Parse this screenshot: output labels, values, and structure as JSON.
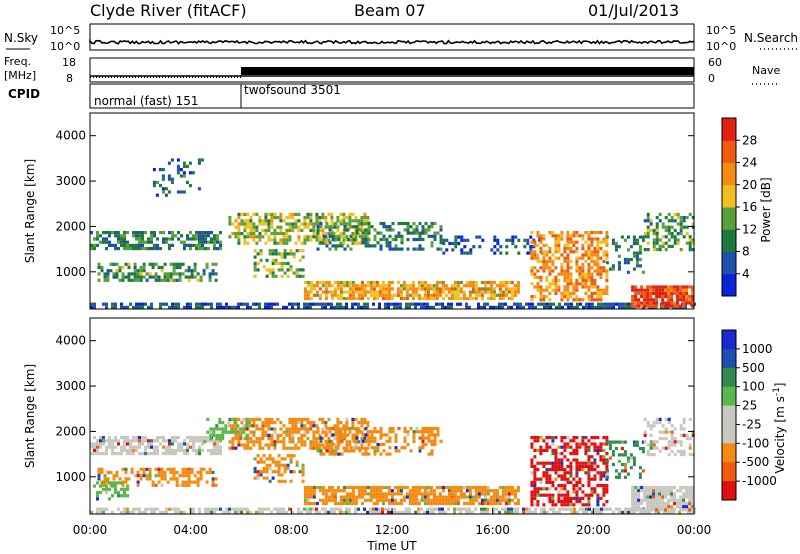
{
  "header": {
    "station": "Clyde River (fitACF)",
    "beam": "Beam 07",
    "date": "01/Jul/2013"
  },
  "chart_data": [
    {
      "type": "line",
      "panel": "noise",
      "left_label": "N.Sky",
      "right_label": "N.Search",
      "y_ticks_left": [
        "10^5",
        "10^0"
      ],
      "y_ticks_right": [
        "10^5",
        "10^0"
      ],
      "line_value": 0.7,
      "xlim": [
        0,
        24
      ]
    },
    {
      "type": "line",
      "panel": "frequency",
      "left_label_1": "Freq.",
      "left_label_2": "[MHz]",
      "right_label": "Nave",
      "y_ticks_left": [
        "18",
        "8"
      ],
      "y_ticks_right": [
        "60",
        "0"
      ],
      "ylim_left": [
        8,
        18
      ],
      "freq_mhz": 10.5,
      "nave_series": [
        {
          "x_start": 0,
          "x_end": 6,
          "value": 12
        },
        {
          "x_start": 6,
          "x_end": 24,
          "value": 30
        }
      ]
    },
    {
      "type": "table",
      "panel": "cpid",
      "label": "CPID",
      "segments": [
        {
          "name": "normal (fast) 151",
          "x_start": 0,
          "x_end": 6
        },
        {
          "name": "twofsound 3501",
          "x_start": 6,
          "x_end": 24
        }
      ]
    },
    {
      "type": "heatmap",
      "panel": "power",
      "ylabel": "Slant Range [km]",
      "ylim": [
        180,
        4500
      ],
      "y_ticks": [
        1000,
        2000,
        3000,
        4000
      ],
      "xlim": [
        0,
        24
      ],
      "colorbar_label": "Power [dB]",
      "colorbar_ticks": [
        4,
        8,
        12,
        16,
        20,
        24,
        28
      ],
      "colorbar_range": [
        0,
        32
      ],
      "colors": [
        "#0a22d8",
        "#1f4fb0",
        "#1d7a3c",
        "#5aa03a",
        "#f0c020",
        "#f58a10",
        "#f05a10",
        "#e02010"
      ],
      "bands": [
        {
          "x0": 0,
          "x1": 5.2,
          "y0": 1500,
          "y1": 1900,
          "v": 10,
          "d": 0.6
        },
        {
          "x0": 0.3,
          "x1": 5.0,
          "y0": 800,
          "y1": 1200,
          "v": 12,
          "d": 0.55
        },
        {
          "x0": 0,
          "x1": 24,
          "y0": 190,
          "y1": 320,
          "v": 6,
          "d": 0.7
        },
        {
          "x0": 5.5,
          "x1": 11,
          "y0": 1600,
          "y1": 2300,
          "v": 16,
          "d": 0.6
        },
        {
          "x0": 6.5,
          "x1": 8.5,
          "y0": 900,
          "y1": 1500,
          "v": 14,
          "d": 0.5
        },
        {
          "x0": 8.5,
          "x1": 17,
          "y0": 400,
          "y1": 800,
          "v": 20,
          "d": 0.8
        },
        {
          "x0": 9,
          "x1": 14,
          "y0": 1500,
          "y1": 2100,
          "v": 10,
          "d": 0.45
        },
        {
          "x0": 14,
          "x1": 18,
          "y0": 1400,
          "y1": 1800,
          "v": 6,
          "d": 0.3
        },
        {
          "x0": 17.5,
          "x1": 20.5,
          "y0": 400,
          "y1": 1900,
          "v": 22,
          "d": 0.55
        },
        {
          "x0": 20.5,
          "x1": 22,
          "y0": 1000,
          "y1": 1800,
          "v": 10,
          "d": 0.35
        },
        {
          "x0": 21.5,
          "x1": 24,
          "y0": 250,
          "y1": 700,
          "v": 28,
          "d": 0.9
        },
        {
          "x0": 22,
          "x1": 24,
          "y0": 1500,
          "y1": 2300,
          "v": 12,
          "d": 0.45
        },
        {
          "x0": 2.5,
          "x1": 4.5,
          "y0": 2700,
          "y1": 3500,
          "v": 8,
          "d": 0.2
        }
      ]
    },
    {
      "type": "heatmap",
      "panel": "velocity",
      "ylabel": "Slant Range [km]",
      "ylim": [
        180,
        4500
      ],
      "y_ticks": [
        1000,
        2000,
        3000,
        4000
      ],
      "xlim": [
        0,
        24
      ],
      "xlabel": "Time UT",
      "x_ticks": [
        "00:00",
        "04:00",
        "08:00",
        "12:00",
        "16:00",
        "20:00",
        "00:00"
      ],
      "x_tick_values": [
        0,
        4,
        8,
        12,
        16,
        20,
        24
      ],
      "colorbar_label": "Velocity [m s",
      "colorbar_label_sup": "-1",
      "colorbar_label_end": "]",
      "colorbar_ticks": [
        "1000",
        "500",
        "100",
        "25",
        "-25",
        "-100",
        "-500",
        "-1000"
      ],
      "colors": [
        "#e01010",
        "#f05a10",
        "#f58a10",
        "#c8c8c0",
        "#c8c8c0",
        "#5ab84a",
        "#2f8a50",
        "#1a4fb0",
        "#1a2ad0"
      ],
      "bands": [
        {
          "x0": 0,
          "x1": 5.2,
          "y0": 1500,
          "y1": 1900,
          "c": "#c8c8c0",
          "d": 0.7
        },
        {
          "x0": 0.3,
          "x1": 5.0,
          "y0": 800,
          "y1": 1200,
          "c": "#f58a10",
          "d": 0.5
        },
        {
          "x0": 0,
          "x1": 1.5,
          "y0": 500,
          "y1": 900,
          "c": "#5ab84a",
          "d": 0.5
        },
        {
          "x0": 0,
          "x1": 24,
          "y0": 190,
          "y1": 320,
          "c": "#c8c8c0",
          "d": 0.7
        },
        {
          "x0": 5.5,
          "x1": 11,
          "y0": 1600,
          "y1": 2300,
          "c": "#f58a10",
          "d": 0.65
        },
        {
          "x0": 4.5,
          "x1": 6.5,
          "y0": 1800,
          "y1": 2300,
          "c": "#5ab84a",
          "d": 0.4
        },
        {
          "x0": 6.5,
          "x1": 8.5,
          "y0": 900,
          "y1": 1500,
          "c": "#f58a10",
          "d": 0.5
        },
        {
          "x0": 8.5,
          "x1": 17,
          "y0": 400,
          "y1": 800,
          "c": "#f58a10",
          "d": 0.8
        },
        {
          "x0": 9,
          "x1": 14,
          "y0": 1500,
          "y1": 2100,
          "c": "#f58a10",
          "d": 0.45
        },
        {
          "x0": 17.5,
          "x1": 20.5,
          "y0": 400,
          "y1": 1900,
          "c": "#e01010",
          "d": 0.55
        },
        {
          "x0": 20.5,
          "x1": 22,
          "y0": 1000,
          "y1": 1800,
          "c": "#2f8a50",
          "d": 0.3
        },
        {
          "x0": 21.5,
          "x1": 24,
          "y0": 250,
          "y1": 800,
          "c": "#c8c8c0",
          "d": 0.9
        },
        {
          "x0": 22,
          "x1": 24,
          "y0": 1500,
          "y1": 2300,
          "c": "#c8c8c0",
          "d": 0.45
        }
      ]
    }
  ]
}
